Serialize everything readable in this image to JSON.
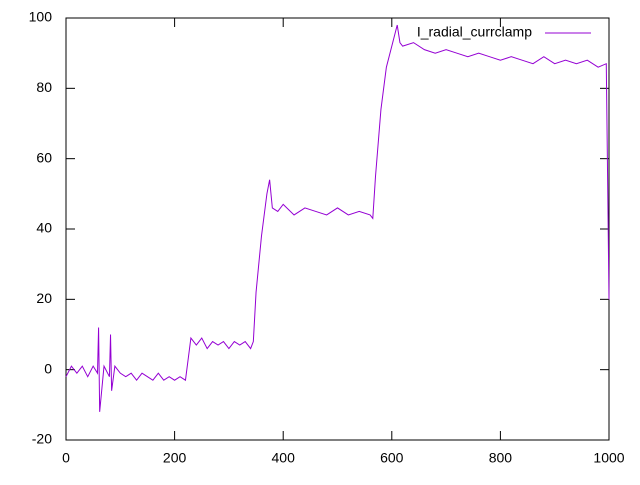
{
  "chart_data": {
    "type": "line",
    "x": [
      0,
      10,
      20,
      30,
      40,
      50,
      58,
      60,
      62,
      70,
      80,
      82,
      84,
      90,
      100,
      110,
      120,
      130,
      140,
      150,
      160,
      170,
      180,
      190,
      200,
      210,
      220,
      225,
      230,
      240,
      250,
      260,
      270,
      280,
      290,
      300,
      310,
      320,
      330,
      340,
      345,
      350,
      360,
      370,
      375,
      380,
      390,
      400,
      420,
      440,
      460,
      480,
      500,
      520,
      540,
      560,
      565,
      570,
      580,
      590,
      600,
      610,
      615,
      620,
      640,
      660,
      680,
      700,
      720,
      740,
      760,
      780,
      800,
      820,
      840,
      860,
      880,
      900,
      920,
      940,
      960,
      980,
      995,
      1000
    ],
    "series": [
      {
        "name": "I_radial_currclamp",
        "color": "#9400d3",
        "values": [
          -2,
          1,
          -1,
          1,
          -2,
          1,
          -1,
          12,
          -12,
          1,
          -2,
          10,
          -6,
          1,
          -1,
          -2,
          -1,
          -3,
          -1,
          -2,
          -3,
          -1,
          -3,
          -2,
          -3,
          -2,
          -3,
          3,
          9,
          7,
          9,
          6,
          8,
          7,
          8,
          6,
          8,
          7,
          8,
          6,
          8,
          22,
          38,
          50,
          54,
          46,
          45,
          47,
          44,
          46,
          45,
          44,
          46,
          44,
          45,
          44,
          43,
          55,
          74,
          86,
          92,
          98,
          93,
          92,
          93,
          91,
          90,
          91,
          90,
          89,
          90,
          89,
          88,
          89,
          88,
          87,
          89,
          87,
          88,
          87,
          88,
          86,
          87,
          20
        ]
      }
    ],
    "xlim": [
      0,
      1000
    ],
    "ylim": [
      -20,
      100
    ],
    "xticks": [
      0,
      200,
      400,
      600,
      800,
      1000
    ],
    "yticks": [
      -20,
      0,
      20,
      40,
      60,
      80,
      100
    ],
    "legend": "top-right"
  }
}
